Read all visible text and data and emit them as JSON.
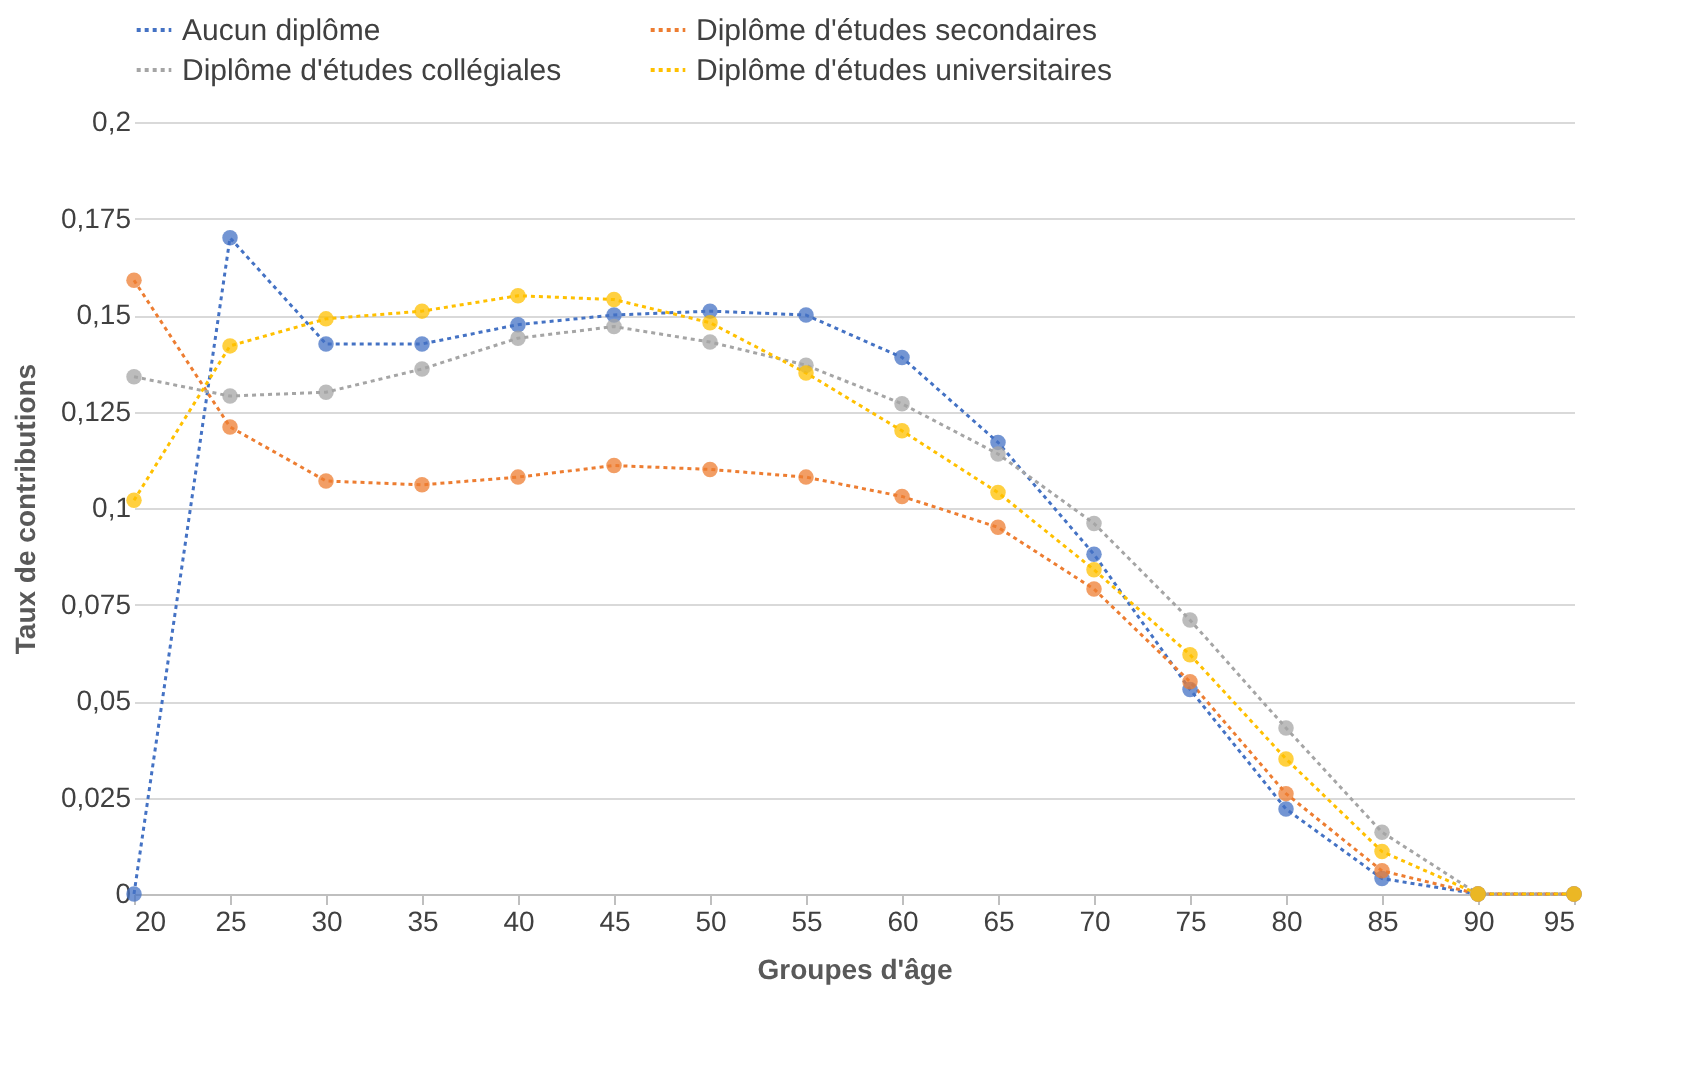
{
  "chart_data": {
    "type": "line",
    "xlabel": "Groupes d'âge",
    "ylabel": "Taux de contributions",
    "x": [
      20,
      25,
      30,
      35,
      40,
      45,
      50,
      55,
      60,
      65,
      70,
      75,
      80,
      85,
      90,
      95
    ],
    "series": [
      {
        "name": "Aucun diplôme",
        "color": "#4472c4",
        "values": [
          0,
          0.17,
          0.1425,
          0.1425,
          0.1475,
          0.15,
          0.151,
          0.15,
          0.139,
          0.117,
          0.088,
          0.053,
          0.022,
          0.004,
          0,
          0
        ]
      },
      {
        "name": "Diplôme d'études secondaires",
        "color": "#ed7d31",
        "values": [
          0.159,
          0.121,
          0.107,
          0.106,
          0.108,
          0.111,
          0.11,
          0.108,
          0.103,
          0.095,
          0.079,
          0.055,
          0.026,
          0.006,
          0,
          0
        ]
      },
      {
        "name": "Diplôme d'études collégiales",
        "color": "#a5a5a5",
        "values": [
          0.134,
          0.129,
          0.13,
          0.136,
          0.144,
          0.147,
          0.143,
          0.137,
          0.127,
          0.114,
          0.096,
          0.071,
          0.043,
          0.016,
          0,
          0
        ]
      },
      {
        "name": "Diplôme d'études universitaires",
        "color": "#ffc000",
        "values": [
          0.102,
          0.142,
          0.149,
          0.151,
          0.155,
          0.154,
          0.148,
          0.135,
          0.12,
          0.104,
          0.084,
          0.062,
          0.035,
          0.011,
          0,
          0
        ]
      }
    ],
    "xlim": [
      20,
      95
    ],
    "xticks": [
      20,
      25,
      30,
      35,
      40,
      45,
      50,
      55,
      60,
      65,
      70,
      75,
      80,
      85,
      90,
      95
    ],
    "ylim": [
      0,
      0.2
    ],
    "yticks": [
      {
        "value": 0,
        "label": "0"
      },
      {
        "value": 0.025,
        "label": "0,025"
      },
      {
        "value": 0.05,
        "label": "0,05"
      },
      {
        "value": 0.075,
        "label": "0,075"
      },
      {
        "value": 0.1,
        "label": "0,1"
      },
      {
        "value": 0.125,
        "label": "0,125"
      },
      {
        "value": 0.15,
        "label": "0,15"
      },
      {
        "value": 0.175,
        "label": "0,175"
      },
      {
        "value": 0.2,
        "label": "0,2"
      }
    ],
    "grid": "y",
    "legend": "top",
    "marker": "circle",
    "line_style": "dotted"
  }
}
